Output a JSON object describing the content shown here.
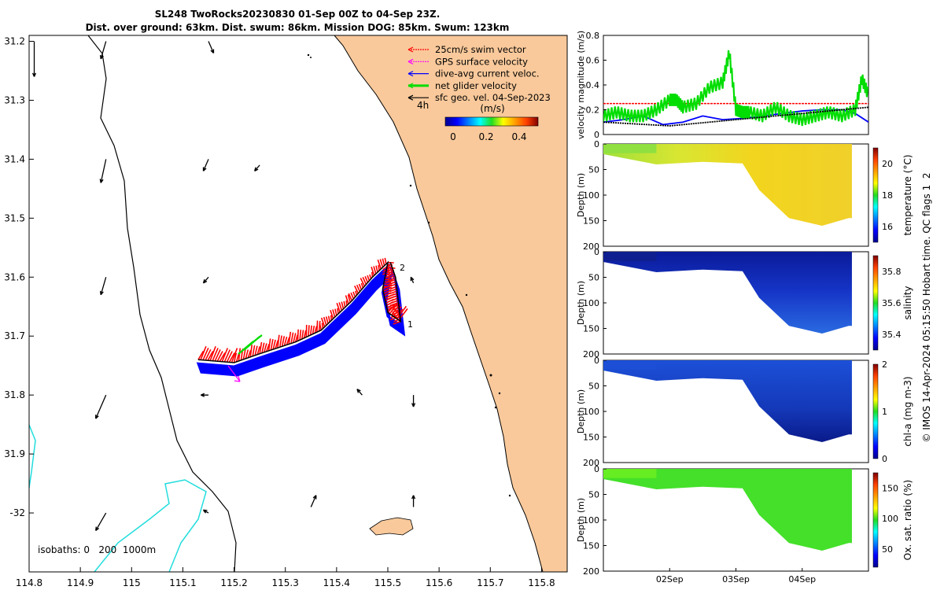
{
  "title": {
    "line1": "SL248 TwoRocks20230830 01-Sep 00Z to 04-Sep 23Z.",
    "line2": "Dist. over ground: 63km. Dist. swum: 86km. Mission DOG: 85km. Swum: 123km"
  },
  "colors": {
    "land": "#f9c99b",
    "swim": "#ff0000",
    "gps": "#ff00ff",
    "current": "#0000ff",
    "net": "#00dd00",
    "geo": "#000000",
    "isobath200": "#000000",
    "isobath1000": "#22dddd"
  },
  "chart_data": [
    {
      "id": "map",
      "type": "scatter",
      "xlabel": "",
      "ylabel": "",
      "xlim": [
        114.8,
        115.85
      ],
      "ylim": [
        -32.1,
        -31.19
      ],
      "xticks": [
        "114.8",
        "114.9",
        "115",
        "115.1",
        "115.2",
        "115.3",
        "115.4",
        "115.5",
        "115.6",
        "115.7",
        "115.8"
      ],
      "yticks": [
        "31.2",
        "31.3",
        "31.4",
        "31.5",
        "31.6",
        "31.7",
        "31.8",
        "31.9",
        "-32"
      ],
      "legend": [
        {
          "label": "25cm/s swim vector",
          "color": "#ff0000"
        },
        {
          "label": "GPS surface velocity",
          "color": "#ff00ff"
        },
        {
          "label": "dive-avg current veloc.",
          "color": "#0000ff"
        },
        {
          "label": "net glider velocity",
          "color": "#00dd00"
        },
        {
          "label": "sfc geo. vel. 04-Sep-2023",
          "color": "#000000"
        }
      ],
      "scale_label": "4h",
      "colorbar": {
        "title": "(m/s)",
        "ticks": [
          "0",
          "0.2",
          "0.4"
        ]
      },
      "isobath_label": "isobaths: 0   200  1000m",
      "waypoint_labels": [
        "1",
        "2"
      ],
      "track": [
        [
          115.13,
          -31.74
        ],
        [
          115.2,
          -31.745
        ],
        [
          115.25,
          -31.73
        ],
        [
          115.32,
          -31.71
        ],
        [
          115.37,
          -31.69
        ],
        [
          115.43,
          -31.64
        ],
        [
          115.47,
          -31.6
        ],
        [
          115.5,
          -31.575
        ],
        [
          115.49,
          -31.62
        ],
        [
          115.5,
          -31.66
        ],
        [
          115.525,
          -31.675
        ],
        [
          115.515,
          -31.6
        ],
        [
          115.505,
          -31.575
        ]
      ],
      "geo_vectors": [
        [
          114.81,
          -31.2,
          0,
          -0.06
        ],
        [
          114.95,
          -31.2,
          -0.01,
          -0.03
        ],
        [
          115.15,
          -31.2,
          0.01,
          -0.02
        ],
        [
          114.95,
          -31.4,
          -0.01,
          -0.04
        ],
        [
          115.15,
          -31.4,
          -0.01,
          -0.02
        ],
        [
          115.25,
          -31.41,
          -0.01,
          -0.01
        ],
        [
          114.95,
          -31.6,
          -0.01,
          -0.03
        ],
        [
          115.15,
          -31.6,
          -0.01,
          -0.01
        ],
        [
          115.55,
          -31.61,
          -0.005,
          0.01
        ],
        [
          114.95,
          -31.8,
          -0.02,
          -0.04
        ],
        [
          115.15,
          -31.8,
          -0.015,
          0
        ],
        [
          115.45,
          -31.8,
          -0.01,
          0.01
        ],
        [
          115.55,
          -31.8,
          0,
          -0.02
        ],
        [
          114.95,
          -32.0,
          -0.02,
          -0.03
        ],
        [
          115.15,
          -32.0,
          -0.01,
          0.005
        ],
        [
          115.35,
          -31.99,
          0.01,
          0.02
        ],
        [
          115.55,
          -31.99,
          0,
          0.02
        ]
      ]
    },
    {
      "id": "velocity",
      "type": "line",
      "ylabel": "velocity magnitude (m/s)",
      "ylim": [
        0,
        0.8
      ],
      "yticks": [
        "0",
        "0.2",
        "0.4",
        "0.6",
        "0.8"
      ],
      "xlim": [
        0,
        4
      ],
      "series": [
        {
          "name": "25cm/s swim vector",
          "color": "#ff0000",
          "x": [
            0,
            4
          ],
          "y": [
            0.25,
            0.25
          ]
        },
        {
          "name": "dive-avg current veloc.",
          "color": "#0000ff",
          "x": [
            0,
            0.3,
            0.6,
            0.9,
            1.2,
            1.5,
            1.8,
            2.1,
            2.4,
            2.7,
            3.0,
            3.3,
            3.6,
            3.8,
            4.0
          ],
          "y": [
            0.1,
            0.12,
            0.15,
            0.08,
            0.1,
            0.15,
            0.12,
            0.13,
            0.15,
            0.17,
            0.19,
            0.2,
            0.2,
            0.17,
            0.1
          ]
        },
        {
          "name": "net glider velocity",
          "color": "#00dd00",
          "x": [
            0,
            0.2,
            0.4,
            0.6,
            0.8,
            1.0,
            1.1,
            1.2,
            1.4,
            1.6,
            1.8,
            1.9,
            2.0,
            2.1,
            2.2,
            2.4,
            2.6,
            2.8,
            3.0,
            3.2,
            3.4,
            3.6,
            3.8,
            3.9,
            4.0
          ],
          "y": [
            0.15,
            0.18,
            0.15,
            0.15,
            0.2,
            0.28,
            0.28,
            0.22,
            0.25,
            0.38,
            0.42,
            0.66,
            0.2,
            0.18,
            0.18,
            0.15,
            0.22,
            0.15,
            0.12,
            0.15,
            0.18,
            0.15,
            0.2,
            0.45,
            0.32
          ]
        },
        {
          "name": "sfc geo. vel.",
          "color": "#000000",
          "x": [
            0,
            1,
            2,
            3,
            4
          ],
          "y": [
            0.1,
            0.07,
            0.12,
            0.17,
            0.22
          ]
        }
      ]
    },
    {
      "id": "temperature",
      "type": "heatmap",
      "ylabel": "Depth (m)",
      "ylim": [
        0,
        200
      ],
      "yticks": [
        "0",
        "50",
        "100",
        "150",
        "200"
      ],
      "colorbar": {
        "label": "temperature (°C)",
        "range": [
          15,
          21
        ],
        "ticks": [
          "16",
          "18",
          "20"
        ]
      },
      "value_range": [
        18.8,
        19.8
      ],
      "bottom_depth": [
        [
          0,
          20
        ],
        [
          0.8,
          40
        ],
        [
          1.5,
          35
        ],
        [
          2.1,
          38
        ],
        [
          2.35,
          90
        ],
        [
          2.8,
          145
        ],
        [
          3.3,
          160
        ],
        [
          3.7,
          145
        ],
        [
          3.75,
          145
        ]
      ]
    },
    {
      "id": "salinity",
      "type": "heatmap",
      "ylabel": "Depth (m)",
      "ylim": [
        0,
        200
      ],
      "yticks": [
        "0",
        "50",
        "100",
        "150",
        "200"
      ],
      "colorbar": {
        "label": "salinity",
        "range": [
          35.3,
          35.9
        ],
        "ticks": [
          "35.4",
          "35.6",
          "35.8"
        ]
      },
      "value_range": [
        35.35,
        35.5
      ],
      "bottom_depth": [
        [
          0,
          20
        ],
        [
          0.8,
          40
        ],
        [
          1.5,
          35
        ],
        [
          2.1,
          38
        ],
        [
          2.35,
          90
        ],
        [
          2.8,
          145
        ],
        [
          3.3,
          160
        ],
        [
          3.7,
          145
        ],
        [
          3.75,
          145
        ]
      ]
    },
    {
      "id": "chlorophyll",
      "type": "heatmap",
      "ylabel": "Depth (m)",
      "ylim": [
        0,
        200
      ],
      "yticks": [
        "0",
        "50",
        "100",
        "150",
        "200"
      ],
      "colorbar": {
        "label": "chl-a (mg m-3)",
        "range": [
          0,
          2
        ],
        "ticks": [
          "0",
          "1",
          "2"
        ]
      },
      "value_range": [
        0.1,
        0.3
      ],
      "bottom_depth": [
        [
          0,
          20
        ],
        [
          0.8,
          40
        ],
        [
          1.5,
          35
        ],
        [
          2.1,
          38
        ],
        [
          2.35,
          90
        ],
        [
          2.8,
          145
        ],
        [
          3.3,
          160
        ],
        [
          3.7,
          145
        ],
        [
          3.75,
          145
        ]
      ]
    },
    {
      "id": "oxygen",
      "type": "heatmap",
      "ylabel": "Depth (m)",
      "ylim": [
        0,
        200
      ],
      "yticks": [
        "0",
        "50",
        "100",
        "150",
        "200"
      ],
      "colorbar": {
        "label": "Ox. sat. ratio (%)",
        "range": [
          20,
          175
        ],
        "ticks": [
          "50",
          "100",
          "150"
        ]
      },
      "value_range": [
        100,
        110
      ],
      "bottom_depth": [
        [
          0,
          20
        ],
        [
          0.8,
          40
        ],
        [
          1.5,
          35
        ],
        [
          2.1,
          38
        ],
        [
          2.35,
          90
        ],
        [
          2.8,
          145
        ],
        [
          3.3,
          160
        ],
        [
          3.7,
          145
        ],
        [
          3.75,
          145
        ]
      ]
    }
  ],
  "time_ticks": [
    "02Sep",
    "03Sep",
    "04Sep"
  ],
  "footer": "© IMOS 14-Apr-2024 05:15:50 Hobart time. QC flags 1  2"
}
